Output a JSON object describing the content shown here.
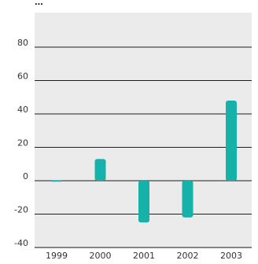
{
  "chart_data": {
    "type": "bar",
    "title": "",
    "title_fragment": "...",
    "categories": [
      "1999",
      "2000",
      "2001",
      "2002",
      "2003"
    ],
    "series": [
      {
        "values": [
          0,
          13,
          -25,
          -22,
          48
        ],
        "color": "#16b1a8"
      }
    ],
    "yticks": [
      "80",
      "60",
      "40",
      "20",
      "0",
      "-20",
      "-40"
    ],
    "ylim": [
      -40,
      100
    ],
    "grid": true,
    "plot_background": "#ebebeb",
    "gridline_color": "#1e1e1e",
    "label_color": "#333333"
  }
}
